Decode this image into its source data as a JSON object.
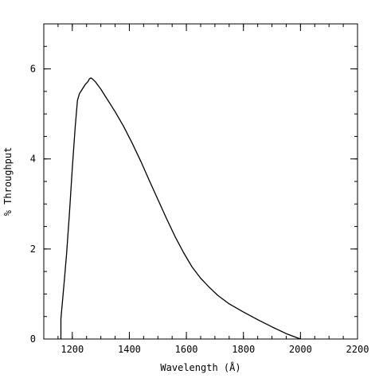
{
  "chart_data": {
    "type": "line",
    "title": "",
    "xlabel": "Wavelength (Å)",
    "ylabel": "% Throughput",
    "xlim": [
      1100,
      2200
    ],
    "ylim": [
      0,
      7
    ],
    "x_ticks": [
      1200,
      1400,
      1600,
      1800,
      2000,
      2200
    ],
    "y_ticks": [
      0,
      2,
      4,
      6
    ],
    "x_tick_labels": [
      "1200",
      "1400",
      "1600",
      "1800",
      "2000",
      "2200"
    ],
    "y_tick_labels": [
      "0",
      "2",
      "4",
      "6"
    ],
    "x_minor_step": 50,
    "y_minor_step": 0.5,
    "grid": false,
    "line_color": "#000000",
    "series": [
      {
        "x": [
          1160,
          1160,
          1165,
          1172,
          1180,
          1190,
          1200,
          1210,
          1218,
          1225,
          1235,
          1245,
          1255,
          1260,
          1265,
          1270,
          1280,
          1300,
          1320,
          1350,
          1380,
          1410,
          1440,
          1470,
          1500,
          1530,
          1560,
          1590,
          1620,
          1650,
          1680,
          1710,
          1750,
          1800,
          1850,
          1900,
          1950,
          2000
        ],
        "y": [
          0.0,
          0.45,
          0.8,
          1.3,
          1.9,
          2.8,
          3.8,
          4.7,
          5.3,
          5.45,
          5.55,
          5.65,
          5.72,
          5.78,
          5.8,
          5.78,
          5.72,
          5.55,
          5.35,
          5.05,
          4.72,
          4.35,
          3.95,
          3.52,
          3.1,
          2.68,
          2.28,
          1.92,
          1.6,
          1.35,
          1.15,
          0.97,
          0.78,
          0.6,
          0.43,
          0.27,
          0.12,
          0.0
        ]
      }
    ]
  }
}
